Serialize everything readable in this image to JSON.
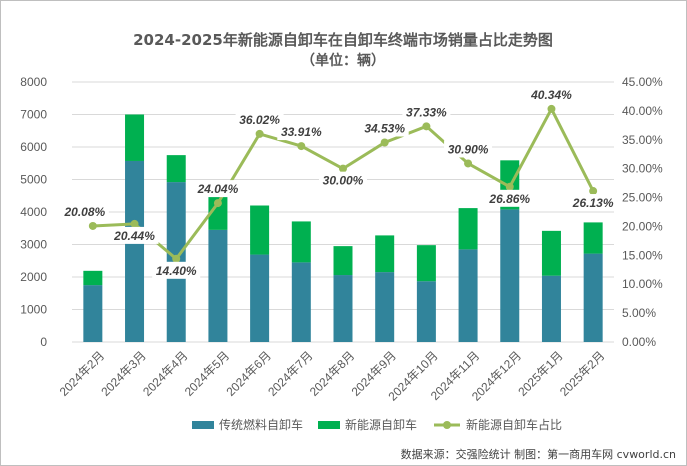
{
  "chart_data": {
    "type": "bar",
    "stacked": true,
    "title": "2024-2025年新能源自卸车在自卸车终端市场销量占比走势图",
    "subtitle": "（单位：辆）",
    "categories": [
      "2024年2月",
      "2024年3月",
      "2024年4月",
      "2024年5月",
      "2024年6月",
      "2024年7月",
      "2024年8月",
      "2024年9月",
      "2024年10月",
      "2024年11月",
      "2024年12月",
      "2025年1月",
      "2025年2月"
    ],
    "series": [
      {
        "name": "传统燃料自卸车",
        "kind": "bar",
        "axis": "left",
        "color": "#31849b",
        "values": [
          1750,
          5570,
          4920,
          3450,
          2690,
          2450,
          2060,
          2150,
          1870,
          2850,
          4080,
          2040,
          2720
        ]
      },
      {
        "name": "新能源自卸车",
        "kind": "bar",
        "axis": "left",
        "color": "#00b050",
        "values": [
          440,
          1430,
          830,
          1090,
          1510,
          1260,
          890,
          1130,
          1110,
          1270,
          1510,
          1380,
          960
        ]
      },
      {
        "name": "新能源自卸车占比",
        "kind": "line",
        "axis": "right",
        "color": "#9bbb59",
        "values": [
          20.08,
          20.44,
          14.4,
          24.04,
          36.02,
          33.91,
          30.0,
          34.53,
          37.33,
          30.9,
          26.86,
          40.34,
          26.13
        ],
        "labels": [
          "20.08%",
          "20.44%",
          "14.40%",
          "24.04%",
          "36.02%",
          "33.91%",
          "30.00%",
          "34.53%",
          "37.33%",
          "30.90%",
          "26.86%",
          "40.34%",
          "26.13%"
        ]
      }
    ],
    "y_left": {
      "min": 0,
      "max": 8000,
      "step": 1000,
      "ticks": [
        "0",
        "1000",
        "2000",
        "3000",
        "4000",
        "5000",
        "6000",
        "7000",
        "8000"
      ]
    },
    "y_right": {
      "min": 0,
      "max": 45,
      "step": 5,
      "ticks": [
        "0.00%",
        "5.00%",
        "10.00%",
        "15.00%",
        "20.00%",
        "25.00%",
        "30.00%",
        "35.00%",
        "40.00%",
        "45.00%"
      ]
    },
    "grid": true,
    "legend_position": "bottom"
  },
  "source_note": "数据来源：交强险统计  制图：第一商用车网 cvworld.cn"
}
